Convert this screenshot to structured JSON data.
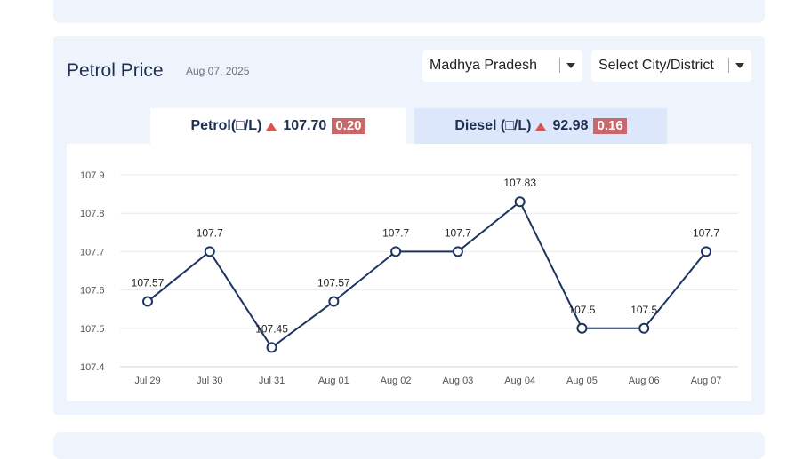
{
  "header": {
    "title": "Petrol Price",
    "date": "Aug 07, 2025"
  },
  "filters": {
    "state": "Madhya Pradesh",
    "city": "Select City/District"
  },
  "tabs": {
    "petrol": {
      "label": "Petrol(□/L)",
      "price": "107.70",
      "change": "0.20"
    },
    "diesel": {
      "label": "Diesel (□/L)",
      "price": "92.98",
      "change": "0.16"
    }
  },
  "colors": {
    "line": "#1d3461",
    "badge": "#c9686a",
    "card": "#eef3fc",
    "up_arrow": "#d9534f"
  },
  "chart_data": {
    "type": "line",
    "title": "",
    "xlabel": "",
    "ylabel": "",
    "x": [
      "Jul 29",
      "Jul 30",
      "Jul 31",
      "Aug 01",
      "Aug 02",
      "Aug 03",
      "Aug 04",
      "Aug 05",
      "Aug 06",
      "Aug 07"
    ],
    "values": [
      107.57,
      107.7,
      107.45,
      107.57,
      107.7,
      107.7,
      107.83,
      107.5,
      107.5,
      107.7
    ],
    "data_labels": [
      "107.57",
      "107.7",
      "107.45",
      "107.57",
      "107.7",
      "107.7",
      "107.83",
      "107.5",
      "107.5",
      "107.7"
    ],
    "y_ticks": [
      107.4,
      107.5,
      107.6,
      107.7,
      107.8,
      107.9
    ],
    "y_tick_labels": [
      "107.4",
      "107.5",
      "107.6",
      "107.7",
      "107.8",
      "107.9"
    ],
    "ylim": [
      107.4,
      107.9
    ],
    "grid": true,
    "legend": "none"
  }
}
